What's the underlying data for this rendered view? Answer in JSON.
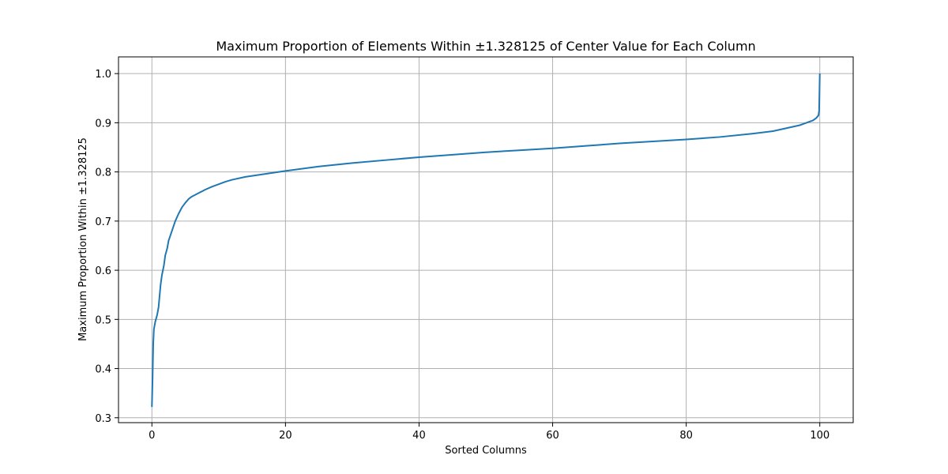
{
  "chart_data": {
    "type": "line",
    "title": "Maximum Proportion of Elements Within ±1.328125 of Center Value for Each Column",
    "xlabel": "Sorted Columns",
    "ylabel": "Maximum Proportion Within ±1.328125",
    "xlim": [
      -5,
      105
    ],
    "ylim": [
      0.29,
      1.034
    ],
    "xticks": [
      0,
      20,
      40,
      60,
      80,
      100
    ],
    "yticks": [
      0.3,
      0.4,
      0.5,
      0.6,
      0.7,
      0.8,
      0.9,
      1.0
    ],
    "xtick_labels": [
      "0",
      "20",
      "40",
      "60",
      "80",
      "100"
    ],
    "ytick_labels": [
      "0.3",
      "0.4",
      "0.5",
      "0.6",
      "0.7",
      "0.8",
      "0.9",
      "1.0"
    ],
    "grid": true,
    "series": [
      {
        "color": "#1f77b4",
        "x": [
          0,
          0.1,
          0.2,
          0.3,
          0.5,
          0.8,
          1.0,
          1.3,
          1.5,
          1.8,
          2.0,
          2.3,
          2.5,
          3.0,
          3.5,
          4.0,
          4.5,
          5.0,
          5.5,
          6.0,
          7.0,
          8.0,
          9.0,
          10.0,
          11.0,
          12.0,
          14.0,
          16.0,
          18.0,
          20.0,
          25.0,
          30.0,
          35.0,
          40.0,
          45.0,
          50.0,
          55.0,
          60.0,
          65.0,
          70.0,
          75.0,
          80.0,
          85.0,
          90.0,
          93.0,
          95.0,
          97.0,
          98.0,
          99.0,
          99.5,
          99.8,
          99.9,
          100.0
        ],
        "y": [
          0.322,
          0.38,
          0.45,
          0.48,
          0.495,
          0.51,
          0.525,
          0.57,
          0.59,
          0.61,
          0.63,
          0.645,
          0.66,
          0.68,
          0.7,
          0.715,
          0.728,
          0.737,
          0.745,
          0.75,
          0.757,
          0.764,
          0.77,
          0.775,
          0.78,
          0.784,
          0.79,
          0.794,
          0.798,
          0.802,
          0.811,
          0.818,
          0.824,
          0.83,
          0.835,
          0.84,
          0.844,
          0.848,
          0.853,
          0.858,
          0.862,
          0.866,
          0.871,
          0.878,
          0.883,
          0.889,
          0.895,
          0.9,
          0.905,
          0.91,
          0.915,
          0.925,
          1.0
        ]
      }
    ]
  }
}
